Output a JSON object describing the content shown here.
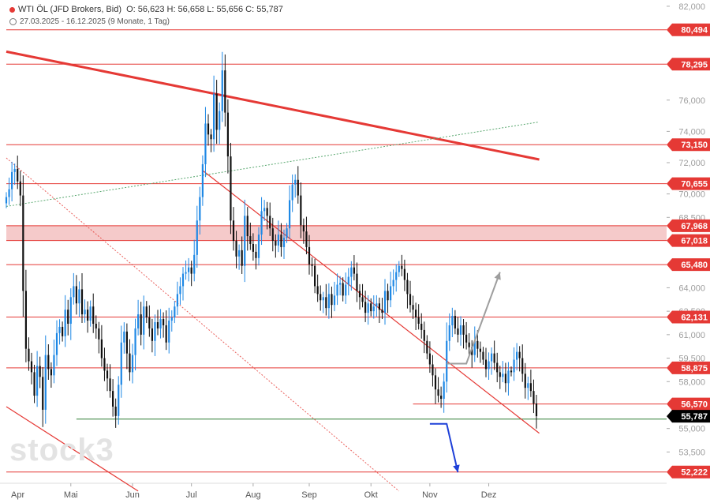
{
  "header": {
    "title": "WTI ÖL (JFD Brokers, Bid)",
    "ohlc": "O: 56,623  H: 56,658  L: 55,656  C: 55,787",
    "range": "27.03.2025 - 16.12.2025  (9 Monate, 1 Tag)"
  },
  "watermark": "stock3",
  "colors": {
    "up": "#1e88e5",
    "down": "#111111",
    "level": "#e53935",
    "trend": "#e53935",
    "zone": "#f2b8b8",
    "support": "#2e7d32",
    "arrow_up": "#9e9e9e",
    "arrow_down": "#1e40d8",
    "badge_last": "#000000"
  },
  "chart_data": {
    "type": "candlestick",
    "instrument": "WTI ÖL (JFD Brokers, Bid)",
    "ylim": [
      51.5,
      82.4
    ],
    "y_axis_ticks": [
      "82,000",
      "76,000",
      "74,000",
      "72,000",
      "70,000",
      "68,500",
      "64,000",
      "62,500",
      "61,000",
      "59,500",
      "58,000",
      "55,000",
      "53,500"
    ],
    "x_axis_ticks": [
      "Apr",
      "Mai",
      "Jun",
      "Jul",
      "Aug",
      "Sep",
      "Okt",
      "Nov",
      "Dez"
    ],
    "horizontal_levels": [
      {
        "value": 80.494,
        "label": "80,494"
      },
      {
        "value": 78.295,
        "label": "78,295"
      },
      {
        "value": 73.15,
        "label": "73,150"
      },
      {
        "value": 70.655,
        "label": "70,655"
      },
      {
        "value": 65.48,
        "label": "65,480"
      },
      {
        "value": 62.131,
        "label": "62,131"
      },
      {
        "value": 58.875,
        "label": "58,875"
      },
      {
        "value": 56.57,
        "label": "56,570"
      },
      {
        "value": 52.222,
        "label": "52,222"
      }
    ],
    "zone": {
      "low": 67.018,
      "high": 67.968,
      "low_label": "67,018",
      "high_label": "67,968"
    },
    "support": {
      "value": 55.6,
      "start": "Mai"
    },
    "last_price": {
      "value": 55.787,
      "label": "55,787"
    },
    "trendlines": [
      {
        "style": "thick",
        "from": {
          "t": 0,
          "v": 79.1
        },
        "to": {
          "t": 190,
          "v": 72.2
        }
      },
      {
        "style": "solid",
        "from": {
          "t": 0,
          "v": 56.4
        },
        "to": {
          "t": 47,
          "v": 51.0
        }
      },
      {
        "style": "solid",
        "from": {
          "t": 70,
          "v": 71.5
        },
        "to": {
          "t": 190,
          "v": 54.7
        }
      },
      {
        "style": "dotted",
        "from": {
          "t": 0,
          "v": 72.3
        },
        "to": {
          "t": 140,
          "v": 51.0
        }
      },
      {
        "style": "dotted_green",
        "from": {
          "t": 0,
          "v": 69.2
        },
        "to": {
          "t": 190,
          "v": 74.6
        }
      }
    ],
    "arrows": [
      {
        "dir": "up",
        "points": [
          [
            157,
            59.15
          ],
          [
            164,
            59.15
          ],
          [
            176,
            65.0
          ]
        ]
      },
      {
        "dir": "down",
        "points": [
          [
            151,
            55.3
          ],
          [
            157,
            55.3
          ],
          [
            161,
            52.2
          ]
        ]
      }
    ],
    "closes": [
      69.8,
      70.3,
      71.4,
      71.6,
      70.8,
      69.9,
      63.8,
      60.1,
      59.3,
      58.6,
      57.1,
      59.0,
      58.3,
      56.2,
      59.7,
      58.8,
      58.4,
      59.7,
      61.1,
      61.5,
      60.9,
      62.6,
      61.7,
      63.4,
      64.1,
      63.0,
      63.9,
      62.3,
      62.6,
      61.9,
      62.8,
      61.7,
      61.4,
      60.7,
      59.5,
      58.7,
      58.2,
      57.4,
      56.4,
      55.8,
      57.8,
      60.5,
      61.2,
      59.8,
      58.6,
      59.7,
      61.4,
      62.3,
      61.0,
      62.8,
      62.1,
      61.4,
      60.6,
      61.8,
      61.4,
      62.0,
      61.6,
      60.5,
      61.9,
      62.1,
      62.8,
      63.6,
      64.1,
      64.9,
      65.0,
      65.3,
      64.9,
      66.1,
      68.3,
      69.8,
      71.9,
      74.5,
      73.8,
      73.5,
      76.4,
      74.1,
      75.3,
      77.9,
      75.2,
      72.4,
      68.3,
      67.0,
      66.0,
      66.4,
      65.4,
      68.6,
      67.3,
      66.8,
      66.3,
      65.9,
      67.4,
      68.9,
      69.1,
      68.6,
      67.8,
      67.0,
      66.7,
      67.4,
      66.6,
      67.2,
      67.8,
      69.6,
      70.6,
      70.9,
      69.9,
      68.0,
      67.6,
      66.6,
      65.5,
      65.4,
      64.1,
      63.6,
      63.2,
      63.4,
      62.7,
      63.6,
      62.9,
      63.5,
      64.2,
      64.3,
      63.5,
      64.2,
      64.7,
      65.3,
      64.9,
      63.8,
      63.4,
      63.1,
      62.4,
      63.0,
      62.5,
      62.8,
      63.0,
      62.6,
      62.4,
      63.8,
      63.2,
      64.1,
      64.5,
      65.0,
      65.4,
      65.2,
      64.5,
      63.6,
      62.9,
      62.6,
      62.1,
      61.7,
      61.3,
      60.6,
      59.8,
      59.1,
      58.4,
      57.5,
      57.1,
      56.9,
      58.0,
      60.6,
      61.6,
      62.2,
      61.4,
      61.0,
      61.6,
      61.0,
      60.5,
      60.2,
      59.7,
      60.6,
      60.1,
      59.9,
      59.4,
      58.8,
      59.3,
      59.8,
      59.2,
      58.6,
      58.3,
      58.5,
      57.9,
      58.7,
      58.6,
      59.4,
      59.9,
      59.5,
      58.5,
      57.6,
      57.9,
      57.4,
      56.6,
      55.787
    ]
  }
}
